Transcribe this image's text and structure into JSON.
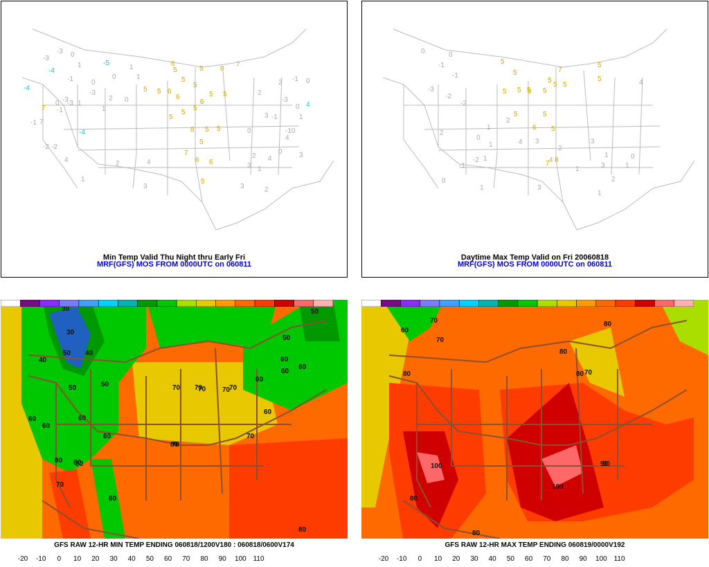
{
  "panels": {
    "top_left": {
      "title": "Min Temp Valid Thu Night thru Early Fri",
      "subtitle": "MRF(GFS) MOS FROM 0000UTC on 060811",
      "values": [
        {
          "v": "-3",
          "c": "gray"
        },
        {
          "v": "0",
          "c": "gray"
        },
        {
          "v": "-3",
          "c": "gray"
        },
        {
          "v": "1",
          "c": "gray"
        },
        {
          "v": "-4",
          "c": "cyan"
        },
        {
          "v": "-5",
          "c": "cyan"
        },
        {
          "v": "1",
          "c": "gray"
        },
        {
          "v": "0",
          "c": "gray"
        },
        {
          "v": "1",
          "c": "gray"
        },
        {
          "v": "-1",
          "c": "gray"
        },
        {
          "v": "-4",
          "c": "cyan"
        },
        {
          "v": "0",
          "c": "gray"
        },
        {
          "v": "-3",
          "c": "gray"
        },
        {
          "v": "2",
          "c": "gray"
        },
        {
          "v": "0",
          "c": "gray"
        },
        {
          "v": "1",
          "c": "gray"
        },
        {
          "v": "-1",
          "c": "gray"
        },
        {
          "v": "7",
          "c": "gold"
        },
        {
          "v": "7",
          "c": "gray"
        },
        {
          "v": "-1",
          "c": "gray"
        },
        {
          "v": "-3",
          "c": "gray"
        },
        {
          "v": "-2",
          "c": "gray"
        },
        {
          "v": "0",
          "c": "gray"
        },
        {
          "v": "-4",
          "c": "cyan"
        },
        {
          "v": "1",
          "c": "gray"
        },
        {
          "v": "-2",
          "c": "gray"
        },
        {
          "v": "2",
          "c": "gray"
        },
        {
          "v": "4",
          "c": "gray"
        },
        {
          "v": "1",
          "c": "gray"
        },
        {
          "v": "3",
          "c": "gray"
        },
        {
          "v": "4",
          "c": "gray"
        },
        {
          "v": "-3",
          "c": "gray"
        },
        {
          "v": "6",
          "c": "gold"
        },
        {
          "v": "5",
          "c": "gold"
        },
        {
          "v": "5",
          "c": "gold"
        },
        {
          "v": "5",
          "c": "gold"
        },
        {
          "v": "5",
          "c": "gold"
        },
        {
          "v": "8",
          "c": "gold"
        },
        {
          "v": "7",
          "c": "gold"
        },
        {
          "v": "5",
          "c": "gold"
        },
        {
          "v": "6",
          "c": "gold"
        },
        {
          "v": "5",
          "c": "gold"
        },
        {
          "v": "6",
          "c": "gold"
        },
        {
          "v": "5",
          "c": "gold"
        },
        {
          "v": "5",
          "c": "gold"
        },
        {
          "v": "5",
          "c": "gold"
        },
        {
          "v": "5",
          "c": "gold"
        },
        {
          "v": "6",
          "c": "gold"
        },
        {
          "v": "5",
          "c": "gold"
        },
        {
          "v": "6",
          "c": "gold"
        },
        {
          "v": "8",
          "c": "gold"
        },
        {
          "v": "5",
          "c": "gold"
        },
        {
          "v": "5",
          "c": "gold"
        },
        {
          "v": "5",
          "c": "gold"
        },
        {
          "v": "7",
          "c": "gold"
        },
        {
          "v": "6",
          "c": "gold"
        },
        {
          "v": "6",
          "c": "gold"
        },
        {
          "v": "5",
          "c": "gold"
        },
        {
          "v": "4",
          "c": "cyan"
        },
        {
          "v": "-1",
          "c": "gray"
        },
        {
          "v": "0",
          "c": "gray"
        },
        {
          "v": "3",
          "c": "gray"
        },
        {
          "v": "0",
          "c": "gray"
        },
        {
          "v": "2",
          "c": "gray"
        },
        {
          "v": "1",
          "c": "gray"
        },
        {
          "v": "3",
          "c": "gray"
        },
        {
          "v": "3",
          "c": "gray"
        },
        {
          "v": "2",
          "c": "gray"
        },
        {
          "v": "0",
          "c": "gray"
        },
        {
          "v": "3",
          "c": "gray"
        },
        {
          "v": "2",
          "c": "gray"
        },
        {
          "v": "2",
          "c": "gray"
        },
        {
          "v": "4",
          "c": "gray"
        },
        {
          "v": "1",
          "c": "gray"
        },
        {
          "v": "-1",
          "c": "gray"
        },
        {
          "v": "-10",
          "c": "gray"
        },
        {
          "v": "0",
          "c": "gray"
        },
        {
          "v": "-3",
          "c": "gray"
        },
        {
          "v": "4",
          "c": "gray"
        }
      ]
    },
    "top_right": {
      "title": "Daytime Max Temp Valid on Fri 20060818",
      "subtitle": "MRF(GFS) MOS FROM 0000UTC on 060811",
      "values": [
        {
          "v": "0",
          "c": "gray"
        },
        {
          "v": "-1",
          "c": "gray"
        },
        {
          "v": "0",
          "c": "gray"
        },
        {
          "v": "-1",
          "c": "gray"
        },
        {
          "v": "-3",
          "c": "gray"
        },
        {
          "v": "5",
          "c": "gold"
        },
        {
          "v": "5",
          "c": "gold"
        },
        {
          "v": "7",
          "c": "gold"
        },
        {
          "v": "5",
          "c": "gold"
        },
        {
          "v": "5",
          "c": "gold"
        },
        {
          "v": "5",
          "c": "gold"
        },
        {
          "v": "5",
          "c": "gold"
        },
        {
          "v": "5",
          "c": "gold"
        },
        {
          "v": "5",
          "c": "gold"
        },
        {
          "v": "5",
          "c": "gold"
        },
        {
          "v": "5",
          "c": "gold"
        },
        {
          "v": "5",
          "c": "gold"
        },
        {
          "v": "5",
          "c": "gold"
        },
        {
          "v": "6",
          "c": "gold"
        },
        {
          "v": "5",
          "c": "gold"
        },
        {
          "v": "7",
          "c": "gold"
        },
        {
          "v": "8",
          "c": "gold"
        },
        {
          "v": "5",
          "c": "gold"
        },
        {
          "v": "5",
          "c": "gold"
        },
        {
          "v": "-2",
          "c": "gray"
        },
        {
          "v": "-2",
          "c": "gray"
        },
        {
          "v": "2",
          "c": "gray"
        },
        {
          "v": "1",
          "c": "gray"
        },
        {
          "v": "0",
          "c": "gray"
        },
        {
          "v": "1",
          "c": "gray"
        },
        {
          "v": "2",
          "c": "gray"
        },
        {
          "v": "4",
          "c": "gray"
        },
        {
          "v": "3",
          "c": "gray"
        },
        {
          "v": "1",
          "c": "gray"
        },
        {
          "v": "-1",
          "c": "gray"
        },
        {
          "v": "-2",
          "c": "gray"
        },
        {
          "v": "0",
          "c": "gray"
        },
        {
          "v": "1",
          "c": "gray"
        },
        {
          "v": "3",
          "c": "gray"
        },
        {
          "v": "4",
          "c": "gray"
        },
        {
          "v": "2",
          "c": "gray"
        },
        {
          "v": "1",
          "c": "gray"
        },
        {
          "v": "3",
          "c": "gray"
        },
        {
          "v": "1",
          "c": "gray"
        },
        {
          "v": "2",
          "c": "gray"
        },
        {
          "v": "1",
          "c": "gray"
        },
        {
          "v": "0",
          "c": "gray"
        },
        {
          "v": "3",
          "c": "gray"
        },
        {
          "v": "1",
          "c": "gray"
        },
        {
          "v": "4",
          "c": "gray"
        }
      ]
    },
    "bottom_left": {
      "title": "GFS RAW 12-HR MIN TEMP ENDING 060818/1200V180 : 060818/0600V174",
      "contour_labels": [
        "30",
        "30",
        "50",
        "40",
        "40",
        "50",
        "50",
        "60",
        "60",
        "60",
        "60",
        "60",
        "60",
        "60",
        "70",
        "70",
        "70",
        "70",
        "70",
        "70",
        "80",
        "80",
        "80",
        "80",
        "80",
        "50",
        "50",
        "60",
        "60",
        "60",
        "70",
        "70"
      ]
    },
    "bottom_right": {
      "title": "GFS RAW 12-HR MAX TEMP ENDING 060819/0000V192",
      "contour_labels": [
        "50",
        "60",
        "70",
        "70",
        "80",
        "80",
        "80",
        "80",
        "90",
        "90",
        "100",
        "100",
        "80",
        "80",
        "70",
        "90"
      ]
    }
  },
  "colorbar": {
    "ticks": [
      "-20",
      "-10",
      "0",
      "10",
      "20",
      "30",
      "40",
      "50",
      "60",
      "70",
      "80",
      "90",
      "100",
      "110"
    ],
    "colors": [
      "#ffffff",
      "#7a0a86",
      "#8b2cff",
      "#7a7aff",
      "#3fa0ff",
      "#00d0ff",
      "#00b2b2",
      "#009a00",
      "#00c800",
      "#aadd00",
      "#e8c800",
      "#ff9a00",
      "#ff6a00",
      "#ff3c00",
      "#d00000",
      "#ff6868",
      "#ffb0b0"
    ]
  },
  "colors": {
    "gold": "#d4a800",
    "cyan": "#00c8e0",
    "gray": "#aaaaaa",
    "border": "#a05a3c"
  }
}
